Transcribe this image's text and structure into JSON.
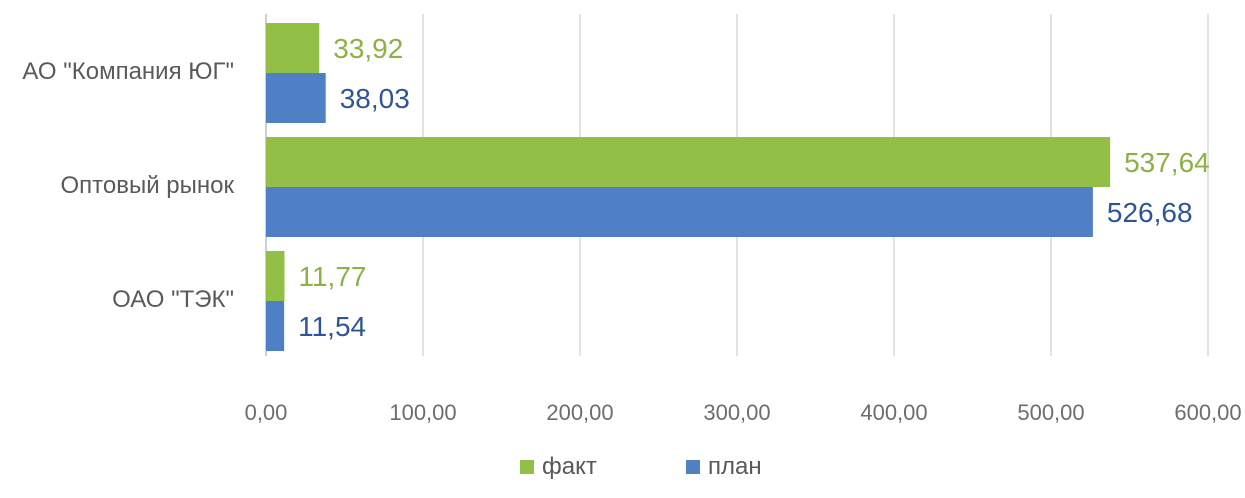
{
  "chart_data": {
    "type": "bar",
    "orientation": "horizontal",
    "categories": [
      "АО \"Компания ЮГ\"",
      "Оптовый рынок",
      "ОАО \"ТЭК\""
    ],
    "series": [
      {
        "name": "факт",
        "values": [
          33.92,
          537.64,
          11.77
        ],
        "labels": [
          "33,92",
          "537,64",
          "11,77"
        ],
        "color": "#92c047"
      },
      {
        "name": "план",
        "values": [
          38.03,
          526.68,
          11.54
        ],
        "labels": [
          "38,03",
          "526,68",
          "11,54"
        ],
        "color": "#4f7fc4"
      }
    ],
    "xlim": [
      0,
      600
    ],
    "x_ticks": [
      0,
      100,
      200,
      300,
      400,
      500,
      600
    ],
    "x_tick_labels": [
      "0,00",
      "100,00",
      "200,00",
      "300,00",
      "400,00",
      "500,00",
      "600,00"
    ],
    "grid": "vertical",
    "legend": {
      "position": "bottom",
      "entries": [
        "факт",
        "план"
      ]
    },
    "title": "",
    "xlabel": "",
    "ylabel": ""
  },
  "colors": {
    "fact": "#92c047",
    "plan": "#4f7fc4",
    "fact_label": "#8db047",
    "plan_label": "#2f5597",
    "grid": "#d9d9d9",
    "axis": "#bfbfbf"
  }
}
